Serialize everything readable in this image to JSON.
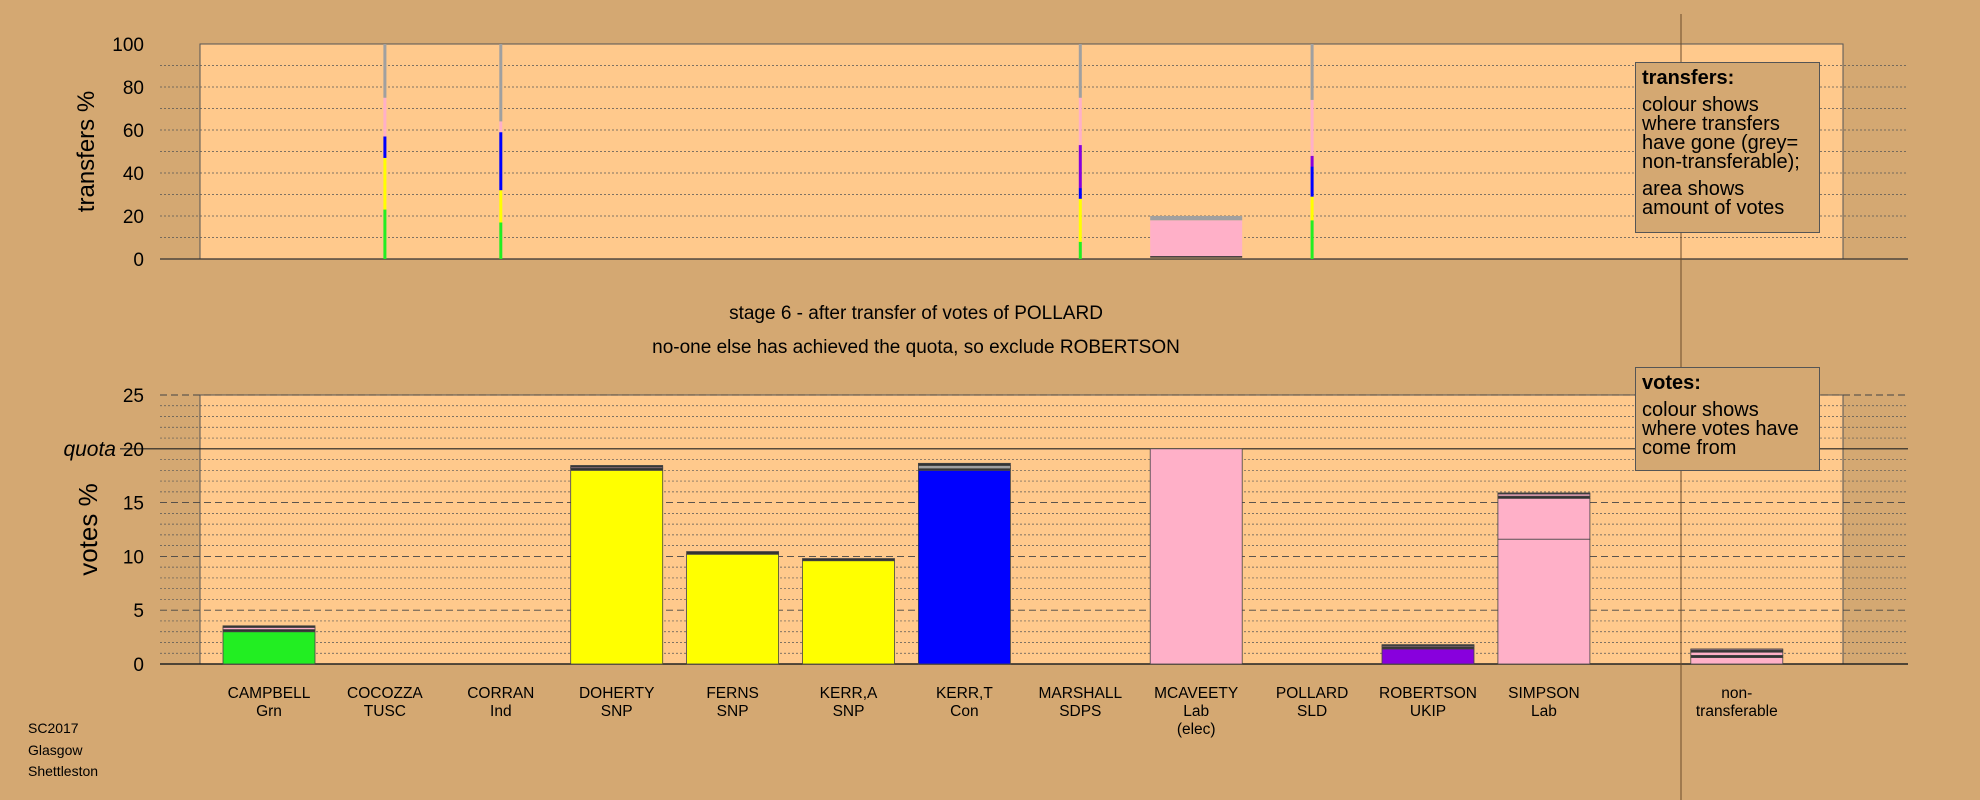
{
  "footer": {
    "line1": "SC2017",
    "line2": "Glasgow",
    "line3": "Shettleston"
  },
  "headings": {
    "stage": "stage 6 - after transfer of votes of POLLARD",
    "note": "no-one else has achieved the quota, so exclude ROBERTSON"
  },
  "legend_transfers": {
    "title": "transfers:",
    "text1": "colour shows where transfers have gone (grey= non-transferable);",
    "text2": "area shows amount of votes"
  },
  "legend_votes": {
    "title": "votes:",
    "text1": "colour shows where votes have come from"
  },
  "colors": {
    "background": "#D4A872",
    "plot_bg": "#FFC98C",
    "green": "#22EE22",
    "yellow": "#FFFF00",
    "blue": "#0000FF",
    "pink": "#FFB0C8",
    "purple": "#8800DD",
    "grey": "#A0A0A0",
    "dark": "#333333"
  },
  "chart_data": [
    {
      "type": "bar",
      "ylabel": "transfers %",
      "ylim": [
        0,
        100
      ],
      "yticks": [
        0,
        20,
        40,
        60,
        80,
        100
      ],
      "grid": true,
      "candidates": [
        "CAMPBELL",
        "COCOZZA",
        "CORRAN",
        "DOHERTY",
        "FERNS",
        "KERR,A",
        "KERR,T",
        "MARSHALL",
        "MCAVEETY",
        "POLLARD",
        "ROBERTSON",
        "SIMPSON",
        "non-transferable"
      ],
      "transfer_strips": [
        {
          "candidate": "COCOZZA",
          "segments": [
            {
              "color": "green",
              "from": 0,
              "to": 23
            },
            {
              "color": "yellow",
              "from": 23,
              "to": 47
            },
            {
              "color": "blue",
              "from": 47,
              "to": 57
            },
            {
              "color": "pink",
              "from": 57,
              "to": 75
            },
            {
              "color": "grey",
              "from": 75,
              "to": 100
            }
          ]
        },
        {
          "candidate": "CORRAN",
          "segments": [
            {
              "color": "green",
              "from": 0,
              "to": 17
            },
            {
              "color": "yellow",
              "from": 17,
              "to": 32
            },
            {
              "color": "blue",
              "from": 32,
              "to": 59
            },
            {
              "color": "pink",
              "from": 59,
              "to": 64
            },
            {
              "color": "grey",
              "from": 64,
              "to": 100
            }
          ]
        },
        {
          "candidate": "MARSHALL",
          "segments": [
            {
              "color": "green",
              "from": 0,
              "to": 8
            },
            {
              "color": "yellow",
              "from": 8,
              "to": 28
            },
            {
              "color": "blue",
              "from": 28,
              "to": 33
            },
            {
              "color": "purple",
              "from": 33,
              "to": 53
            },
            {
              "color": "pink",
              "from": 53,
              "to": 75
            },
            {
              "color": "grey",
              "from": 75,
              "to": 100
            }
          ]
        },
        {
          "candidate": "POLLARD",
          "segments": [
            {
              "color": "green",
              "from": 0,
              "to": 18
            },
            {
              "color": "yellow",
              "from": 18,
              "to": 29
            },
            {
              "color": "blue",
              "from": 29,
              "to": 43
            },
            {
              "color": "purple",
              "from": 43,
              "to": 48
            },
            {
              "color": "pink",
              "from": 48,
              "to": 74
            },
            {
              "color": "grey",
              "from": 74,
              "to": 100
            }
          ]
        }
      ],
      "transfer_blocks": [
        {
          "candidate": "MCAVEETY",
          "segments": [
            {
              "color": "pink",
              "from": 1,
              "to": 18
            },
            {
              "color": "grey",
              "from": 18,
              "to": 20
            }
          ]
        }
      ]
    },
    {
      "type": "bar",
      "ylabel": "votes %",
      "ylim": [
        0,
        25
      ],
      "yticks": [
        0,
        5,
        10,
        15,
        20,
        25
      ],
      "quota": 20,
      "quota_label": "quota",
      "grid": true,
      "categories": [
        {
          "name": "CAMPBELL",
          "party": "Grn",
          "extra": ""
        },
        {
          "name": "COCOZZA",
          "party": "TUSC",
          "extra": ""
        },
        {
          "name": "CORRAN",
          "party": "Ind",
          "extra": ""
        },
        {
          "name": "DOHERTY",
          "party": "SNP",
          "extra": ""
        },
        {
          "name": "FERNS",
          "party": "SNP",
          "extra": ""
        },
        {
          "name": "KERR,A",
          "party": "SNP",
          "extra": ""
        },
        {
          "name": "KERR,T",
          "party": "Con",
          "extra": ""
        },
        {
          "name": "MARSHALL",
          "party": "SDPS",
          "extra": ""
        },
        {
          "name": "MCAVEETY",
          "party": "Lab",
          "extra": "(elec)"
        },
        {
          "name": "POLLARD",
          "party": "SLD",
          "extra": ""
        },
        {
          "name": "ROBERTSON",
          "party": "UKIP",
          "extra": ""
        },
        {
          "name": "SIMPSON",
          "party": "Lab",
          "extra": ""
        },
        {
          "name": "non-",
          "party": "transferable",
          "extra": ""
        }
      ],
      "stacks": [
        [
          {
            "color": "green",
            "value": 3.0
          },
          {
            "color": "dark",
            "value": 0.2
          },
          {
            "color": "pink",
            "value": 0.2
          },
          {
            "color": "dark",
            "value": 0.15
          }
        ],
        [],
        [],
        [
          {
            "color": "yellow",
            "value": 18.0
          },
          {
            "color": "dark",
            "value": 0.2
          },
          {
            "color": "pink",
            "value": 0.1
          },
          {
            "color": "dark",
            "value": 0.15
          }
        ],
        [
          {
            "color": "yellow",
            "value": 10.2
          },
          {
            "color": "dark",
            "value": 0.25
          }
        ],
        [
          {
            "color": "yellow",
            "value": 9.6
          },
          {
            "color": "dark",
            "value": 0.2
          }
        ],
        [
          {
            "color": "blue",
            "value": 18.0
          },
          {
            "color": "dark",
            "value": 0.15
          },
          {
            "color": "grey",
            "value": 0.3
          },
          {
            "color": "dark",
            "value": 0.2
          }
        ],
        [],
        [
          {
            "color": "pink",
            "value": 20.0
          }
        ],
        [],
        [
          {
            "color": "purple",
            "value": 1.4
          },
          {
            "color": "dark",
            "value": 0.2
          },
          {
            "color": "pink",
            "value": 0.1
          },
          {
            "color": "dark",
            "value": 0.1
          }
        ],
        [
          {
            "color": "pink",
            "value": 11.6
          },
          {
            "color": "pink",
            "value": 3.8
          },
          {
            "color": "dark",
            "value": 0.2
          },
          {
            "color": "pink",
            "value": 0.2
          },
          {
            "color": "dark",
            "value": 0.1
          }
        ],
        [
          {
            "color": "pink",
            "value": 0.6
          },
          {
            "color": "dark",
            "value": 0.2
          },
          {
            "color": "pink",
            "value": 0.3
          },
          {
            "color": "dark",
            "value": 0.2
          },
          {
            "color": "pink",
            "value": 0.1
          }
        ]
      ]
    }
  ]
}
